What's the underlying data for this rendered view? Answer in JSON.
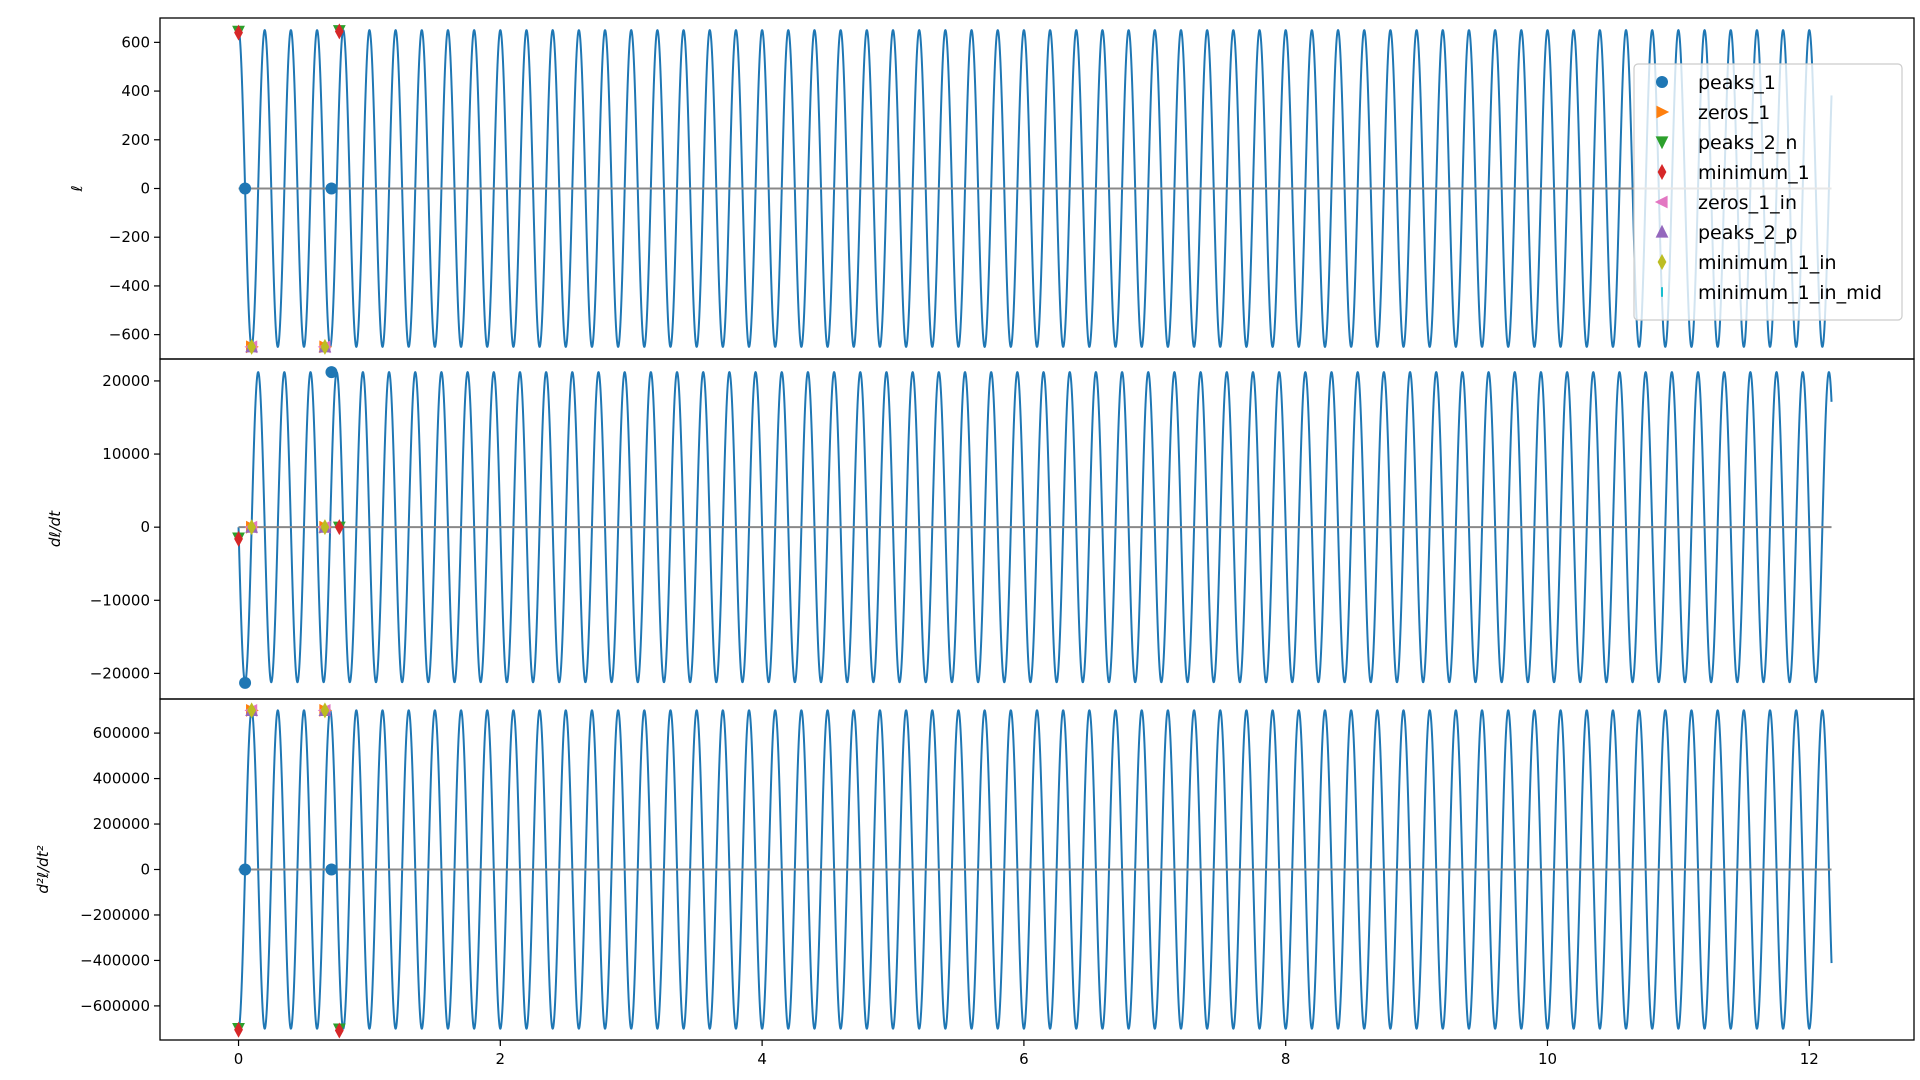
{
  "chart_data": [
    {
      "id": "ell",
      "type": "line",
      "ylabel": "ℓ",
      "xlim": [
        -0.6,
        12.8
      ],
      "ylim": [
        -700,
        700
      ],
      "yticks": [
        600,
        400,
        200,
        0,
        -200,
        -400,
        -600
      ],
      "ytick_labels": [
        "600",
        "400",
        "200",
        "0",
        "−200",
        "−400",
        "−600"
      ],
      "series": [
        {
          "kind": "sine",
          "amplitude": 650,
          "period": 0.2,
          "phase_deg": 90,
          "x_start": 0.0,
          "x_end": 12.17,
          "color": "#1f77b4"
        },
        {
          "kind": "hline",
          "y": 0,
          "x_start": 0.0,
          "x_end": 12.17,
          "color": "#888888"
        }
      ],
      "markers": [
        {
          "name": "peaks_1",
          "points": [
            [
              0.05,
              0
            ],
            [
              0.71,
              0
            ]
          ]
        },
        {
          "name": "zeros_1",
          "points": [
            [
              0.1,
              -650
            ],
            [
              0.66,
              -650
            ]
          ]
        },
        {
          "name": "peaks_2_n",
          "points": [
            [
              0.0,
              645
            ],
            [
              0.77,
              648
            ]
          ]
        },
        {
          "name": "minimum_1",
          "points": [
            [
              0.0,
              640
            ],
            [
              0.77,
              645
            ]
          ]
        },
        {
          "name": "zeros_1_in",
          "points": [
            [
              0.1,
              -650
            ],
            [
              0.66,
              -650
            ]
          ]
        },
        {
          "name": "peaks_2_p",
          "points": [
            [
              0.1,
              -650
            ],
            [
              0.66,
              -650
            ]
          ]
        },
        {
          "name": "minimum_1_in",
          "points": [
            [
              0.1,
              -650
            ],
            [
              0.66,
              -650
            ]
          ]
        },
        {
          "name": "minimum_1_in_mid",
          "points": []
        }
      ]
    },
    {
      "id": "dell",
      "type": "line",
      "ylabel": "dℓ/dt",
      "xlim": [
        -0.6,
        12.8
      ],
      "ylim": [
        -23500,
        23000
      ],
      "yticks": [
        20000,
        10000,
        0,
        -10000,
        -20000
      ],
      "ytick_labels": [
        "20000",
        "10000",
        "0",
        "−10000",
        "−20000"
      ],
      "series": [
        {
          "kind": "sine",
          "amplitude": 21200,
          "period": 0.2,
          "phase_deg": 180,
          "x_start": 0.0,
          "x_end": 12.17,
          "color": "#1f77b4"
        },
        {
          "kind": "hline",
          "y": 0,
          "x_start": 0.0,
          "x_end": 12.17,
          "color": "#888888"
        }
      ],
      "markers": [
        {
          "name": "peaks_1",
          "points": [
            [
              0.05,
              -21300
            ],
            [
              0.71,
              21200
            ]
          ]
        },
        {
          "name": "zeros_1",
          "points": [
            [
              0.1,
              0
            ],
            [
              0.66,
              0
            ]
          ]
        },
        {
          "name": "peaks_2_n",
          "points": [
            [
              0.0,
              -1500
            ],
            [
              0.77,
              0
            ]
          ]
        },
        {
          "name": "minimum_1",
          "points": [
            [
              0.0,
              -1600
            ],
            [
              0.77,
              0
            ]
          ]
        },
        {
          "name": "zeros_1_in",
          "points": [
            [
              0.1,
              0
            ],
            [
              0.66,
              0
            ]
          ]
        },
        {
          "name": "peaks_2_p",
          "points": [
            [
              0.1,
              0
            ],
            [
              0.66,
              0
            ]
          ]
        },
        {
          "name": "minimum_1_in",
          "points": [
            [
              0.1,
              0
            ],
            [
              0.66,
              0
            ]
          ]
        },
        {
          "name": "minimum_1_in_mid",
          "points": []
        }
      ]
    },
    {
      "id": "d2ell",
      "type": "line",
      "ylabel": "d²ℓ/dt²",
      "xlim": [
        -0.6,
        12.8
      ],
      "ylim": [
        -750000,
        750000
      ],
      "yticks": [
        600000,
        400000,
        200000,
        0,
        -200000,
        -400000,
        -600000
      ],
      "ytick_labels": [
        "600000",
        "400000",
        "200000",
        "0",
        "−200000",
        "−400000",
        "−600000"
      ],
      "xticks": [
        0,
        2,
        4,
        6,
        8,
        10,
        12
      ],
      "xtick_labels": [
        "0",
        "2",
        "4",
        "6",
        "8",
        "10",
        "12"
      ],
      "series": [
        {
          "kind": "sine",
          "amplitude": 700000,
          "period": 0.2,
          "phase_deg": 270,
          "x_start": 0.0,
          "x_end": 12.17,
          "color": "#1f77b4"
        },
        {
          "kind": "hline",
          "y": 0,
          "x_start": 0.0,
          "x_end": 12.17,
          "color": "#888888"
        }
      ],
      "markers": [
        {
          "name": "peaks_1",
          "points": [
            [
              0.05,
              0
            ],
            [
              0.71,
              0
            ]
          ]
        },
        {
          "name": "zeros_1",
          "points": [
            [
              0.1,
              700000
            ],
            [
              0.66,
              700000
            ]
          ]
        },
        {
          "name": "peaks_2_n",
          "points": [
            [
              0.0,
              -700000
            ],
            [
              0.77,
              -702000
            ]
          ]
        },
        {
          "name": "minimum_1",
          "points": [
            [
              0.0,
              -705000
            ],
            [
              0.77,
              -708000
            ]
          ]
        },
        {
          "name": "zeros_1_in",
          "points": [
            [
              0.1,
              700000
            ],
            [
              0.66,
              700000
            ]
          ]
        },
        {
          "name": "peaks_2_p",
          "points": [
            [
              0.1,
              700000
            ],
            [
              0.66,
              700000
            ]
          ]
        },
        {
          "name": "minimum_1_in",
          "points": [
            [
              0.1,
              700000
            ],
            [
              0.66,
              700000
            ]
          ]
        },
        {
          "name": "minimum_1_in_mid",
          "points": []
        }
      ]
    }
  ],
  "legend": {
    "placement": "upper right of top panel",
    "entries": [
      {
        "name": "peaks_1",
        "marker": "circle",
        "color": "#1f77b4"
      },
      {
        "name": "zeros_1",
        "marker": "triangle-right",
        "color": "#ff7f0e"
      },
      {
        "name": "peaks_2_n",
        "marker": "triangle-down",
        "color": "#2ca02c"
      },
      {
        "name": "minimum_1",
        "marker": "diamond-thin",
        "color": "#d62728"
      },
      {
        "name": "zeros_1_in",
        "marker": "triangle-left",
        "color": "#e377c2"
      },
      {
        "name": "peaks_2_p",
        "marker": "triangle-up",
        "color": "#9467bd"
      },
      {
        "name": "minimum_1_in",
        "marker": "diamond-thin",
        "color": "#bcbd22"
      },
      {
        "name": "minimum_1_in_mid",
        "marker": "vline",
        "color": "#17becf"
      }
    ]
  },
  "marker_styles": {
    "peaks_1": {
      "marker": "circle",
      "color": "#1f77b4"
    },
    "zeros_1": {
      "marker": "triangle-right",
      "color": "#ff7f0e"
    },
    "peaks_2_n": {
      "marker": "triangle-down",
      "color": "#2ca02c"
    },
    "minimum_1": {
      "marker": "diamond-thin",
      "color": "#d62728"
    },
    "zeros_1_in": {
      "marker": "triangle-left",
      "color": "#e377c2"
    },
    "peaks_2_p": {
      "marker": "triangle-up",
      "color": "#9467bd"
    },
    "minimum_1_in": {
      "marker": "diamond-thin",
      "color": "#bcbd22"
    },
    "minimum_1_in_mid": {
      "marker": "vline",
      "color": "#17becf"
    }
  }
}
